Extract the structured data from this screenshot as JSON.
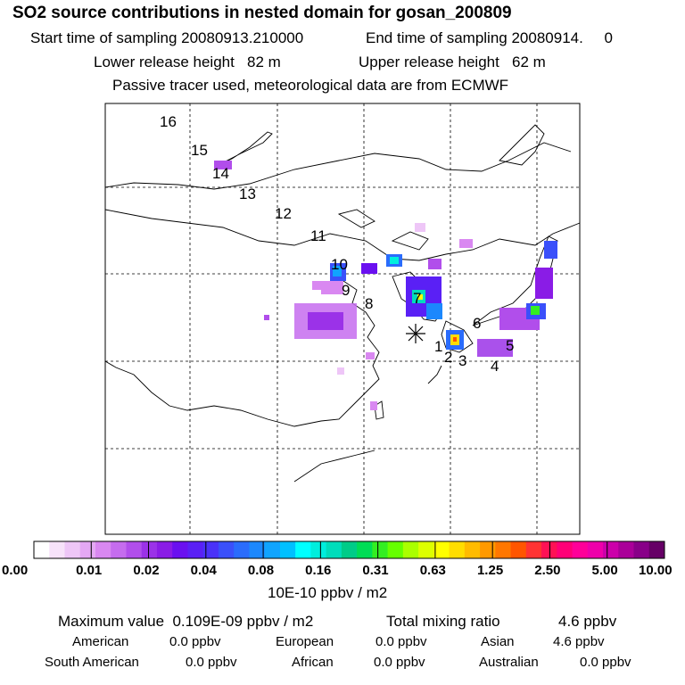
{
  "header": {
    "title": "SO2 source contributions in nested domain for gosan_200809",
    "start_label": "Start time of sampling 20080913.210000",
    "end_label": "End time of sampling 20080914.     0",
    "lower_label": "Lower release height   82 m",
    "upper_label": "Upper release height   62 m",
    "tracer_label": "Passive tracer used, meteorological data are from ECMWF"
  },
  "map": {
    "region_labels": [
      "1",
      "2",
      "3",
      "4",
      "5",
      "6",
      "7",
      "8",
      "9",
      "10",
      "11",
      "12",
      "13",
      "14",
      "15",
      "16"
    ],
    "receptor_marker": "asterisk",
    "colors": {
      "coast": "#000000",
      "grid": "#000000"
    }
  },
  "colorbar": {
    "ticks": [
      "0.00",
      "0.01",
      "0.02",
      "0.04",
      "0.08",
      "0.16",
      "0.31",
      "0.63",
      "1.25",
      "2.50",
      "5.00",
      "10.00"
    ],
    "units": "10E-10 ppbv / m2",
    "colors": [
      "#ffffff",
      "#f7e2fa",
      "#eec6f7",
      "#e4a8f4",
      "#d988f1",
      "#c56cee",
      "#b14eeb",
      "#9b32e8",
      "#8a1ce6",
      "#6a10f0",
      "#5a20f5",
      "#4a32f8",
      "#3a50fa",
      "#2a6cfc",
      "#1c88fd",
      "#10a4fe",
      "#00c0ff",
      "#00ffff",
      "#00eedd",
      "#00ddbb",
      "#00cc88",
      "#00dd55",
      "#33ee22",
      "#66ff00",
      "#aaff00",
      "#ddff00",
      "#ffff00",
      "#ffdd00",
      "#ffbb00",
      "#ff9900",
      "#ff7700",
      "#ff5500",
      "#ff3333",
      "#ff1155",
      "#ff0077",
      "#ff0099",
      "#ee00aa",
      "#cc00aa",
      "#aa0099",
      "#880088",
      "#660066"
    ]
  },
  "stats": {
    "max_label": "Maximum value  0.109E-09 ppbv / m2",
    "total_label": "Total mixing ratio",
    "total_value": "4.6 ppbv",
    "american": "American",
    "american_val": "0.0 ppbv",
    "european": "European",
    "european_val": "0.0 ppbv",
    "asian": "Asian",
    "asian_val": "4.6 ppbv",
    "south_american": "South American",
    "south_american_val": "0.0 ppbv",
    "african": "African",
    "african_val": "0.0 ppbv",
    "australian": "Australian",
    "australian_val": "0.0 ppbv"
  }
}
